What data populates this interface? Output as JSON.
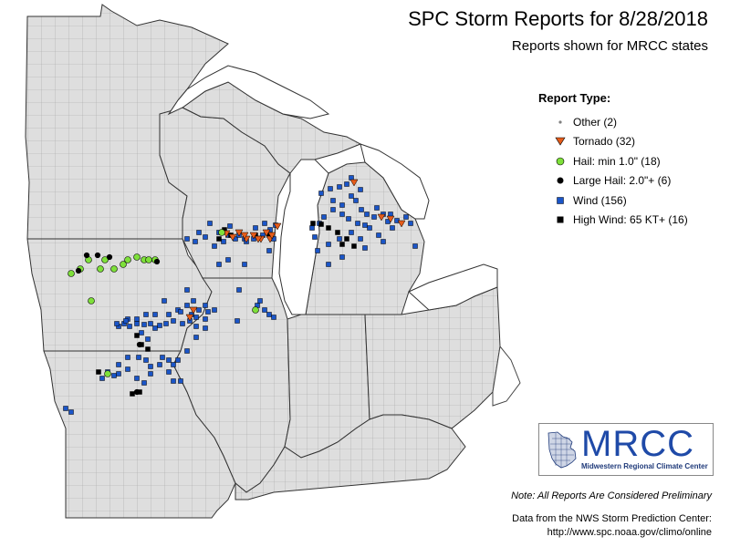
{
  "title": "SPC Storm Reports for 8/28/2018",
  "subtitle": "Reports shown for MRCC states",
  "legend": {
    "title": "Report Type:",
    "items": [
      {
        "label": "Other (2)",
        "symbol": "other-icon",
        "color": "#808080"
      },
      {
        "label": "Tornado (32)",
        "symbol": "tornado-triangle-icon",
        "color": "#e65c1a"
      },
      {
        "label": "Hail: min 1.0\" (18)",
        "symbol": "hail-circle-icon",
        "color": "#7ee03a"
      },
      {
        "label": "Large Hail: 2.0\"+ (6)",
        "symbol": "large-hail-circle-icon",
        "color": "#000000"
      },
      {
        "label": "Wind (156)",
        "symbol": "wind-square-icon",
        "color": "#1a55c8"
      },
      {
        "label": "High Wind: 65 KT+ (16)",
        "symbol": "high-wind-square-icon",
        "color": "#000000"
      }
    ]
  },
  "logo": {
    "text": "MRCC",
    "subtext": "Midwestern Regional Climate Center"
  },
  "note": "Note: All Reports Are Considered Preliminary",
  "source_line1": "Data from the NWS Storm Prediction Center:",
  "source_line2": "http://www.spc.noaa.gov/climo/online",
  "colors": {
    "land": "#dedede",
    "county_border": "#9a9a9a",
    "state_border": "#333333",
    "water": "#ffffff"
  }
}
